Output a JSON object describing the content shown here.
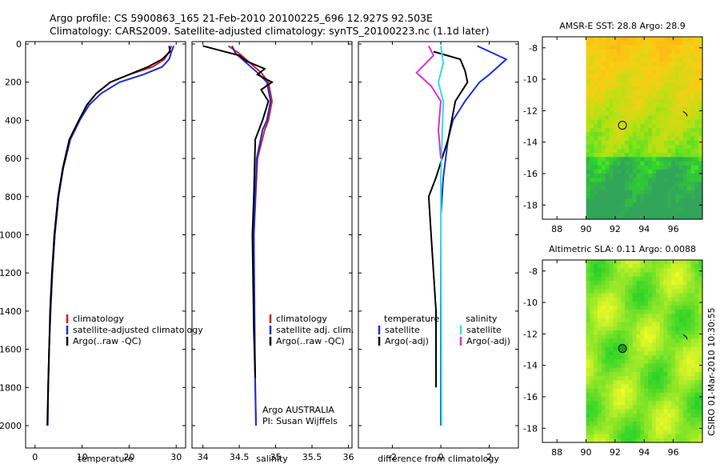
{
  "header": {
    "line1": "Argo profile: CS 5900863_165 21-Feb-2010 20100225_696 12.927S 92.503E",
    "line2": "Climatology: CARS2009. Satellite-adjusted climatology: synTS_20100223.nc (1.1d later)"
  },
  "side_label": "CSIRO 01-Mar-2010 10:30:55",
  "colors": {
    "red": "#d42020",
    "blue": "#1a2fd6",
    "black": "#000000",
    "cyan": "#2ee0e0",
    "magenta": "#dc2cdc"
  },
  "chart_data": [
    {
      "type": "line",
      "xlabel": "temperature",
      "xlim": [
        -2,
        32
      ],
      "ylim": [
        0,
        2050
      ],
      "y_reversed": true,
      "xticks": [
        "0",
        "10",
        "20",
        "30"
      ],
      "yticks": [
        "0",
        "200",
        "400",
        "600",
        "800",
        "1000",
        "1200",
        "1400",
        "1600",
        "1800",
        "2000"
      ],
      "legend": [
        "climatology",
        "satellite-adjusted climatology",
        "Argo(..raw -QC)"
      ],
      "series": [
        {
          "name": "climatology",
          "color": "red",
          "x": [
            29,
            28.5,
            27.5,
            25,
            20,
            16,
            13,
            11,
            9.5,
            7.5,
            6,
            5,
            4.2,
            3.7,
            3.3,
            3.0,
            2.8,
            2.7
          ],
          "y": [
            10,
            40,
            80,
            120,
            160,
            200,
            260,
            320,
            400,
            500,
            650,
            800,
            1000,
            1200,
            1400,
            1600,
            1800,
            2000
          ]
        },
        {
          "name": "satellite-adjusted climatology",
          "color": "blue",
          "x": [
            29.5,
            29,
            28.5,
            27,
            23,
            18,
            14,
            11.5,
            9.5,
            7.5,
            6,
            5,
            4.2,
            3.7,
            3.3,
            3.0,
            2.8,
            2.7
          ],
          "y": [
            10,
            40,
            80,
            120,
            160,
            200,
            260,
            320,
            400,
            500,
            650,
            800,
            1000,
            1200,
            1400,
            1600,
            1800,
            2000
          ]
        },
        {
          "name": "Argo(..raw -QC)",
          "color": "black",
          "x": [
            28.5,
            28.7,
            27,
            24,
            20,
            16,
            13,
            11,
            9.3,
            7.3,
            5.9,
            4.9,
            4.1,
            3.6,
            3.2,
            3.0,
            2.8,
            2.6
          ],
          "y": [
            10,
            40,
            80,
            120,
            160,
            200,
            260,
            320,
            400,
            500,
            650,
            800,
            1000,
            1200,
            1400,
            1600,
            1800,
            2000
          ]
        }
      ]
    },
    {
      "type": "line",
      "xlabel": "salinity",
      "xlim": [
        33.85,
        36.05
      ],
      "ylim": [
        0,
        2050
      ],
      "y_reversed": true,
      "xticks": [
        "34",
        "34.5",
        "35",
        "35.5",
        "36"
      ],
      "legend": [
        "climatology",
        "satellite adj. clim.",
        "Argo(..raw -QC)"
      ],
      "annotations": [
        "Argo AUSTRALIA",
        "PI: Susan Wijffels"
      ],
      "series": [
        {
          "name": "climatology",
          "color": "red",
          "x": [
            34.35,
            34.5,
            34.65,
            34.8,
            34.9,
            34.95,
            34.9,
            34.85,
            34.75,
            34.7,
            34.7,
            34.72,
            34.73
          ],
          "y": [
            10,
            50,
            100,
            150,
            200,
            300,
            400,
            450,
            600,
            1000,
            1400,
            1800,
            2000
          ]
        },
        {
          "name": "satellite adj. clim.",
          "color": "blue",
          "x": [
            34.4,
            34.45,
            34.6,
            34.75,
            34.88,
            34.93,
            34.88,
            34.82,
            34.74,
            34.7,
            34.71,
            34.72,
            34.73
          ],
          "y": [
            10,
            50,
            100,
            150,
            200,
            300,
            400,
            450,
            600,
            1000,
            1400,
            1800,
            2000
          ]
        },
        {
          "name": "Argo(..raw -QC)",
          "color": "black",
          "x": [
            34.0,
            34.2,
            34.5,
            34.6,
            34.85,
            34.75,
            34.95,
            34.8,
            34.9,
            34.82,
            34.72,
            34.7,
            34.68,
            34.7,
            34.72
          ],
          "y": [
            10,
            30,
            60,
            90,
            130,
            160,
            200,
            240,
            300,
            400,
            500,
            800,
            1000,
            1500,
            1750
          ]
        }
      ]
    },
    {
      "type": "line",
      "xlabel": "difference from climatology",
      "xlim": [
        -3.4,
        3.2
      ],
      "ylim": [
        0,
        2050
      ],
      "y_reversed": true,
      "xticks": [
        "-2",
        "0",
        "2"
      ],
      "legend_titles": [
        "temperature",
        "salinity"
      ],
      "legend": [
        {
          "label": "satellite",
          "color": "blue"
        },
        {
          "label": "Argo(-adj)",
          "color": "black"
        },
        {
          "label": "satellite",
          "color": "cyan"
        },
        {
          "label": "Argo(-adj)",
          "color": "magenta"
        }
      ],
      "series": [
        {
          "name": "temperature satellite",
          "color": "blue",
          "x": [
            1.5,
            2.7,
            2.0,
            1.6,
            1.0,
            0.5,
            0.3,
            0.1,
            0.0,
            0.0,
            0.0,
            0.0
          ],
          "y": [
            10,
            80,
            160,
            200,
            300,
            400,
            500,
            700,
            900,
            1200,
            1600,
            2000
          ]
        },
        {
          "name": "temperature Argo(-adj)",
          "color": "black",
          "x": [
            -0.3,
            0.8,
            1.0,
            1.1,
            0.6,
            0.3,
            -0.2,
            -0.5,
            -0.4,
            -0.2,
            -0.2
          ],
          "y": [
            40,
            80,
            140,
            200,
            300,
            500,
            700,
            800,
            1000,
            1400,
            1800
          ]
        },
        {
          "name": "salinity satellite",
          "color": "cyan",
          "x": [
            0.0,
            0.1,
            -0.1,
            0.1,
            0.05,
            0.0,
            0.0,
            0.02,
            0.03
          ],
          "y": [
            10,
            100,
            200,
            300,
            500,
            700,
            1000,
            1500,
            2000
          ]
        },
        {
          "name": "salinity Argo(-adj)",
          "color": "magenta",
          "x": [
            -0.5,
            -0.3,
            -1.0,
            -0.4,
            0.0,
            -0.1,
            0.0
          ],
          "y": [
            10,
            60,
            150,
            220,
            300,
            450,
            600
          ]
        }
      ]
    },
    {
      "type": "heatmap",
      "title": "AMSR-E SST: 28.8 Argo: 28.9",
      "xlim": [
        87,
        98
      ],
      "ylim": [
        -18.9,
        -7.3
      ],
      "xticks": [
        "88",
        "90",
        "92",
        "94",
        "96"
      ],
      "yticks": [
        "-8",
        "-10",
        "-12",
        "-14",
        "-16",
        "-18"
      ],
      "data_lon_start": 90,
      "marker": {
        "lon": 92.503,
        "lat": -12.927,
        "fill": "none"
      }
    },
    {
      "type": "heatmap",
      "title": "Altimetric SLA: 0.11 Argo: 0.0088",
      "xlim": [
        87,
        98
      ],
      "ylim": [
        -18.9,
        -7.3
      ],
      "xticks": [
        "88",
        "90",
        "92",
        "94",
        "96"
      ],
      "yticks": [
        "-8",
        "-10",
        "-12",
        "-14",
        "-16",
        "-18"
      ],
      "data_lon_start": 90,
      "marker": {
        "lon": 92.503,
        "lat": -12.927,
        "fill": "green"
      }
    }
  ]
}
